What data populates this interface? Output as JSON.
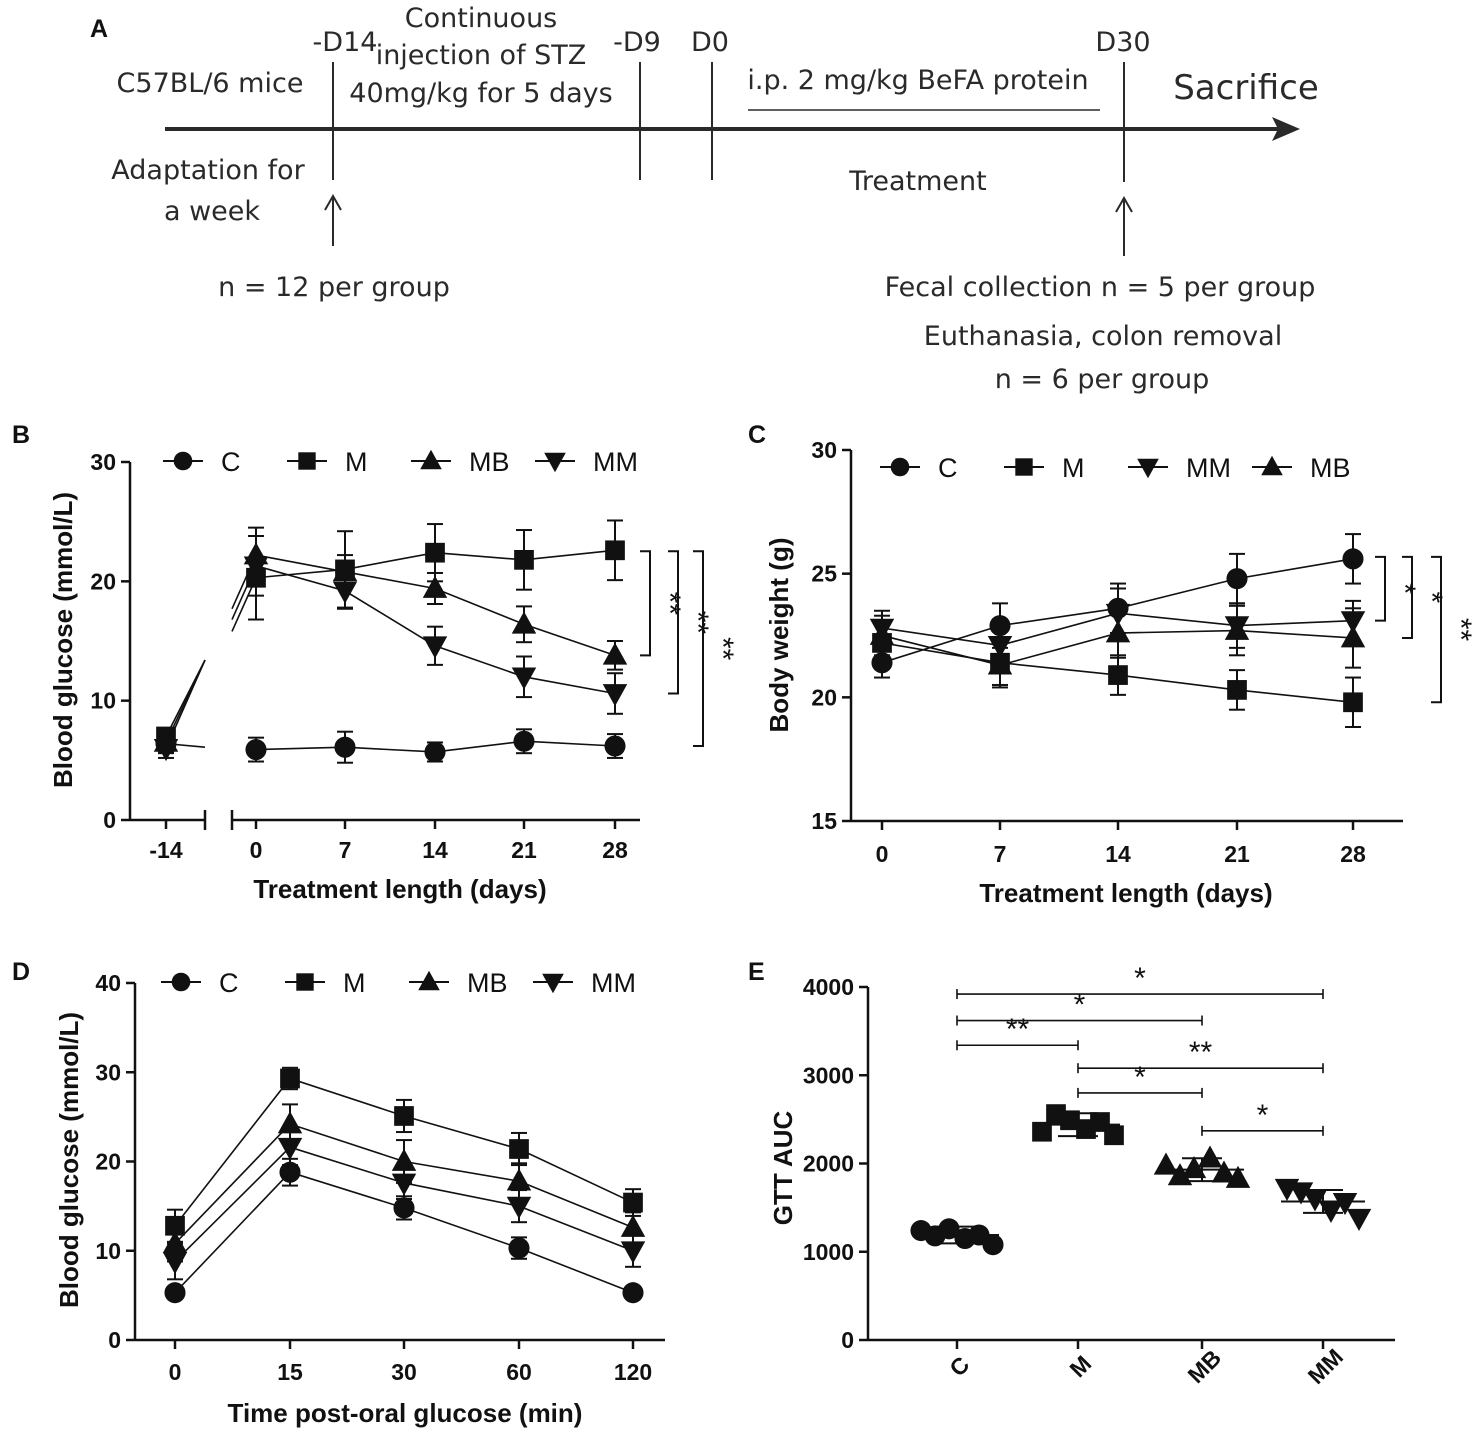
{
  "panels": {
    "A": "A",
    "B": "B",
    "C": "C",
    "D": "D",
    "E": "E"
  },
  "timeline": {
    "mice": "C57BL/6 mice",
    "adapt1": "Adaptation for",
    "adapt2": "a week",
    "d14": "-D14",
    "d9": "-D9",
    "d0": "D0",
    "d30": "D30",
    "stz1": "Continuous",
    "stz2": "injection of STZ",
    "stz3": "40mg/kg for 5 days",
    "ip": "i.p. 2 mg/kg BeFA protein",
    "sacrifice": "Sacrifice",
    "treatment": "Treatment",
    "n12": "n = 12 per group",
    "fecal": "Fecal collection n = 5 per group",
    "euth": "Euthanasia, colon removal",
    "n6": "n = 6 per group"
  },
  "chart_data": [
    {
      "id": "B",
      "type": "line",
      "xlabel": "Treatment length (days)",
      "ylabel": "Blood glucose (mmol/L)",
      "ylim": [
        0,
        30
      ],
      "yticks": [
        0,
        10,
        20,
        30
      ],
      "x": [
        -14,
        0,
        7,
        14,
        21,
        28
      ],
      "xtick_labels": [
        "-14",
        "0",
        "7",
        "14",
        "21",
        "28"
      ],
      "axis_break": "between -14 and 0",
      "legend": [
        "C",
        "M",
        "MB",
        "MM"
      ],
      "series": [
        {
          "name": "C",
          "marker": "circle",
          "values": [
            6.4,
            5.9,
            6.1,
            5.7,
            6.6,
            6.2
          ],
          "errors": [
            0.8,
            1.0,
            1.3,
            0.8,
            1.0,
            1.0
          ]
        },
        {
          "name": "M",
          "marker": "square",
          "values": [
            7.0,
            20.3,
            21.0,
            22.4,
            21.8,
            22.6
          ],
          "errors": [
            0.7,
            3.5,
            3.2,
            2.4,
            2.5,
            2.5
          ]
        },
        {
          "name": "MB",
          "marker": "triangle-up",
          "values": [
            6.5,
            22.2,
            20.8,
            19.4,
            16.4,
            13.8
          ],
          "errors": [
            0.8,
            2.3,
            1.4,
            1.3,
            1.5,
            1.2
          ]
        },
        {
          "name": "MM",
          "marker": "triangle-down",
          "values": [
            6.0,
            21.3,
            19.2,
            14.6,
            12.0,
            10.6
          ],
          "errors": [
            0.8,
            2.5,
            1.5,
            1.6,
            1.7,
            1.7
          ]
        }
      ],
      "significance": [
        {
          "label": "**",
          "from": 22.6,
          "to": 13.8
        },
        {
          "label": "**",
          "from": 22.6,
          "to": 10.6
        },
        {
          "label": "**",
          "from": 22.6,
          "to": 6.2
        }
      ]
    },
    {
      "id": "C",
      "type": "line",
      "xlabel": "Treatment length (days)",
      "ylabel": "Body weight (g)",
      "ylim": [
        15,
        30
      ],
      "yticks": [
        15,
        20,
        25,
        30
      ],
      "x": [
        0,
        7,
        14,
        21,
        28
      ],
      "xtick_labels": [
        "0",
        "7",
        "14",
        "21",
        "28"
      ],
      "legend": [
        "C",
        "M",
        "MM",
        "MB"
      ],
      "series": [
        {
          "name": "C",
          "marker": "circle",
          "values": [
            21.4,
            22.9,
            23.6,
            24.8,
            25.6
          ],
          "errors": [
            0.6,
            0.9,
            1.0,
            1.0,
            1.0
          ]
        },
        {
          "name": "M",
          "marker": "square",
          "values": [
            22.2,
            21.4,
            20.9,
            20.3,
            19.8
          ],
          "errors": [
            0.8,
            0.9,
            0.8,
            0.8,
            1.0
          ]
        },
        {
          "name": "MM",
          "marker": "triangle-down",
          "values": [
            22.8,
            22.1,
            23.4,
            22.9,
            23.1
          ],
          "errors": [
            0.7,
            0.9,
            1.0,
            0.9,
            0.8
          ]
        },
        {
          "name": "MB",
          "marker": "triangle-up",
          "values": [
            22.5,
            21.3,
            22.6,
            22.7,
            22.4
          ],
          "errors": [
            0.8,
            0.9,
            1.0,
            1.0,
            1.2
          ]
        }
      ],
      "significance": [
        {
          "label": "*",
          "from": 25.6,
          "to": 23.1
        },
        {
          "label": "*",
          "from": 25.6,
          "to": 22.4
        },
        {
          "label": "**",
          "from": 25.6,
          "to": 19.8
        }
      ]
    },
    {
      "id": "D",
      "type": "line",
      "xlabel": "Time post-oral glucose (min)",
      "ylabel": "Blood glucose (mmol/L)",
      "ylim": [
        0,
        40
      ],
      "yticks": [
        0,
        10,
        20,
        30,
        40
      ],
      "x": [
        0,
        15,
        30,
        60,
        120
      ],
      "xtick_labels": [
        "0",
        "15",
        "30",
        "60",
        "120"
      ],
      "legend": [
        "C",
        "M",
        "MB",
        "MM"
      ],
      "series": [
        {
          "name": "C",
          "marker": "circle",
          "values": [
            5.3,
            18.8,
            14.8,
            10.3,
            5.3
          ],
          "errors": [
            0.4,
            1.5,
            1.3,
            1.2,
            0.4
          ]
        },
        {
          "name": "M",
          "marker": "square",
          "values": [
            12.8,
            29.3,
            25.1,
            21.4,
            15.4
          ],
          "errors": [
            1.8,
            1.2,
            1.8,
            1.8,
            1.5
          ]
        },
        {
          "name": "MB",
          "marker": "triangle-up",
          "values": [
            10.8,
            24.2,
            20.0,
            17.8,
            12.6
          ],
          "errors": [
            2.0,
            2.2,
            2.4,
            2.0,
            1.7
          ]
        },
        {
          "name": "MM",
          "marker": "triangle-down",
          "values": [
            8.8,
            21.6,
            17.6,
            15.0,
            10.0
          ],
          "errors": [
            2.0,
            2.0,
            1.8,
            1.8,
            1.8
          ]
        }
      ]
    },
    {
      "id": "E",
      "type": "scatter",
      "ylabel": "GTT AUC",
      "ylim": [
        0,
        4000
      ],
      "yticks": [
        0,
        1000,
        2000,
        3000,
        4000
      ],
      "categories": [
        "C",
        "M",
        "MB",
        "MM"
      ],
      "groups": [
        {
          "name": "C",
          "marker": "circle",
          "mean": 1190,
          "sd": 95,
          "points": [
            1240,
            1180,
            1260,
            1150,
            1190,
            1080
          ]
        },
        {
          "name": "M",
          "marker": "square",
          "mean": 2440,
          "sd": 130,
          "points": [
            2360,
            2560,
            2490,
            2390,
            2470,
            2320
          ]
        },
        {
          "name": "MB",
          "marker": "triangle-up",
          "mean": 1930,
          "sd": 130,
          "points": [
            1980,
            1860,
            1940,
            2060,
            1890,
            1830
          ]
        },
        {
          "name": "MM",
          "marker": "triangle-down",
          "mean": 1570,
          "sd": 130,
          "points": [
            1720,
            1680,
            1600,
            1470,
            1560,
            1380
          ]
        }
      ],
      "significance": [
        {
          "label": "*",
          "between": [
            "C",
            "MM"
          ],
          "y": 3920
        },
        {
          "label": "*",
          "between": [
            "C",
            "MB"
          ],
          "y": 3620
        },
        {
          "label": "**",
          "between": [
            "C",
            "M"
          ],
          "y": 3340
        },
        {
          "label": "**",
          "between": [
            "M",
            "MM"
          ],
          "y": 3080
        },
        {
          "label": "*",
          "between": [
            "M",
            "MB"
          ],
          "y": 2800
        },
        {
          "label": "*",
          "between": [
            "MB",
            "MM"
          ],
          "y": 2370
        }
      ]
    }
  ]
}
